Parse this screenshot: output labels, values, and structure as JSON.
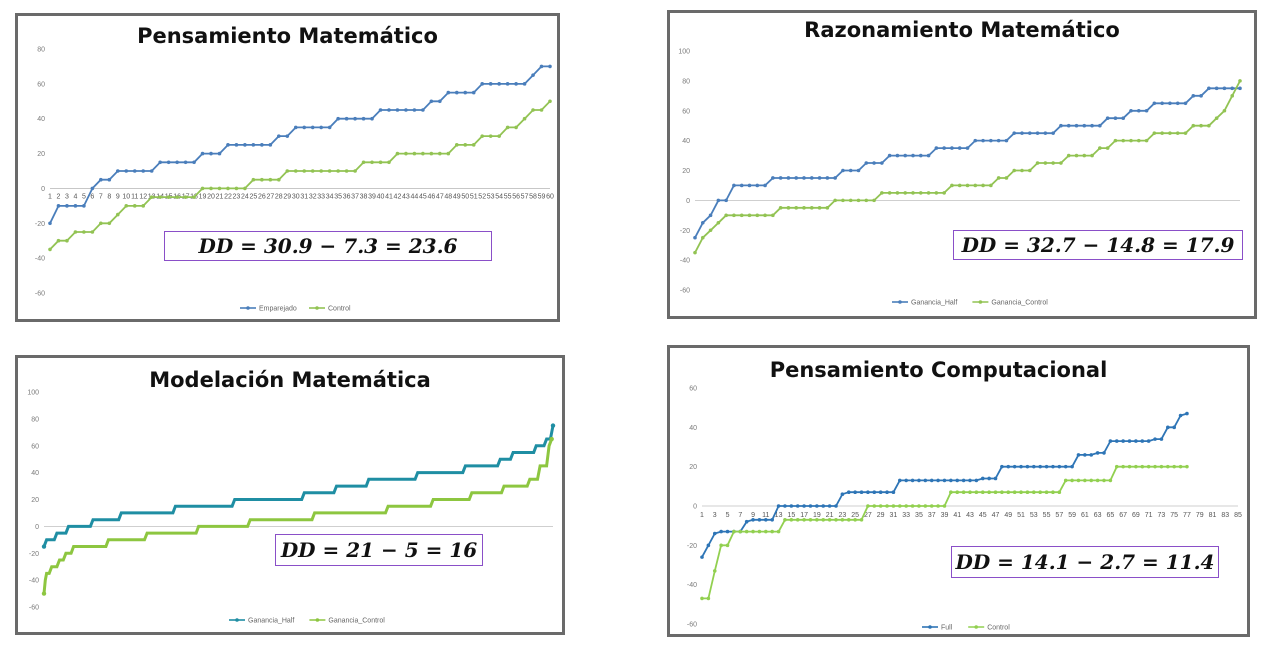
{
  "chart_data": [
    {
      "type": "line",
      "title": "Pensamiento Matemático",
      "ylim": [
        -60,
        80
      ],
      "yticks": [
        -60,
        -40,
        -20,
        0,
        20,
        40,
        60,
        80
      ],
      "grid": false,
      "legend_position": "bottom",
      "x": [
        1,
        2,
        3,
        4,
        5,
        6,
        7,
        8,
        9,
        10,
        11,
        12,
        13,
        14,
        15,
        16,
        17,
        18,
        19,
        20,
        21,
        22,
        23,
        24,
        25,
        26,
        27,
        28,
        29,
        30,
        31,
        32,
        33,
        34,
        35,
        36,
        37,
        38,
        39,
        40,
        41,
        42,
        43,
        44,
        45,
        46,
        47,
        48,
        49,
        50,
        51,
        52,
        53,
        54,
        55,
        56,
        57,
        58,
        59,
        60
      ],
      "xtick_labels": [
        "1",
        "2",
        "3",
        "4",
        "5",
        "6",
        "7",
        "8",
        "9",
        "10",
        "11",
        "12",
        "13",
        "14",
        "15",
        "16",
        "17",
        "18",
        "19",
        "20",
        "21",
        "22",
        "23",
        "24",
        "25",
        "26",
        "27",
        "28",
        "29",
        "30",
        "31",
        "32",
        "33",
        "34",
        "35",
        "36",
        "37",
        "38",
        "39",
        "40",
        "41",
        "42",
        "43",
        "44",
        "45",
        "46",
        "47",
        "48",
        "49",
        "50",
        "51",
        "52",
        "53",
        "54",
        "55",
        "56",
        "57",
        "58",
        "59",
        "60"
      ],
      "series": [
        {
          "name": "Emparejado",
          "color": "#4a7ebb",
          "values": [
            -20,
            -10,
            -10,
            -10,
            -10,
            0,
            5,
            5,
            10,
            10,
            10,
            10,
            10,
            15,
            15,
            15,
            15,
            15,
            20,
            20,
            20,
            25,
            25,
            25,
            25,
            25,
            25,
            30,
            30,
            35,
            35,
            35,
            35,
            35,
            40,
            40,
            40,
            40,
            40,
            45,
            45,
            45,
            45,
            45,
            45,
            50,
            50,
            55,
            55,
            55,
            55,
            60,
            60,
            60,
            60,
            60,
            60,
            65,
            70,
            70
          ]
        },
        {
          "name": "Control",
          "color": "#92c353",
          "values": [
            -35,
            -30,
            -30,
            -25,
            -25,
            -25,
            -20,
            -20,
            -15,
            -10,
            -10,
            -10,
            -5,
            -5,
            -5,
            -5,
            -5,
            -5,
            0,
            0,
            0,
            0,
            0,
            0,
            5,
            5,
            5,
            5,
            10,
            10,
            10,
            10,
            10,
            10,
            10,
            10,
            10,
            15,
            15,
            15,
            15,
            20,
            20,
            20,
            20,
            20,
            20,
            20,
            25,
            25,
            25,
            30,
            30,
            30,
            35,
            35,
            40,
            45,
            45,
            50
          ]
        }
      ],
      "annotation": "DD = 30.9 − 7.3 = 23.6"
    },
    {
      "type": "line",
      "title": "Razonamiento Matemático",
      "ylim": [
        -60,
        100
      ],
      "yticks": [
        -60,
        -40,
        -20,
        0,
        20,
        40,
        60,
        80,
        100
      ],
      "grid": false,
      "legend_position": "bottom",
      "x": [
        1,
        2,
        3,
        4,
        5,
        6,
        7,
        8,
        9,
        10,
        11,
        12,
        13,
        14,
        15,
        16,
        17,
        18,
        19,
        20,
        21,
        22,
        23,
        24,
        25,
        26,
        27,
        28,
        29,
        30,
        31,
        32,
        33,
        34,
        35,
        36,
        37,
        38,
        39,
        40,
        41,
        42,
        43,
        44,
        45,
        46,
        47,
        48,
        49,
        50,
        51,
        52,
        53,
        54,
        55,
        56,
        57,
        58,
        59,
        60,
        61,
        62,
        63,
        64,
        65,
        66,
        67,
        68,
        69,
        70,
        71
      ],
      "series": [
        {
          "name": "Ganancia_Half",
          "color": "#4a7ebb",
          "values": [
            -25,
            -15,
            -10,
            0,
            0,
            10,
            10,
            10,
            10,
            10,
            15,
            15,
            15,
            15,
            15,
            15,
            15,
            15,
            15,
            20,
            20,
            20,
            25,
            25,
            25,
            30,
            30,
            30,
            30,
            30,
            30,
            35,
            35,
            35,
            35,
            35,
            40,
            40,
            40,
            40,
            40,
            45,
            45,
            45,
            45,
            45,
            45,
            50,
            50,
            50,
            50,
            50,
            50,
            55,
            55,
            55,
            60,
            60,
            60,
            65,
            65,
            65,
            65,
            65,
            70,
            70,
            75,
            75,
            75,
            75,
            75
          ]
        },
        {
          "name": "Ganancia_Control",
          "color": "#92c353",
          "values": [
            -35,
            -25,
            -20,
            -15,
            -10,
            -10,
            -10,
            -10,
            -10,
            -10,
            -10,
            -5,
            -5,
            -5,
            -5,
            -5,
            -5,
            -5,
            0,
            0,
            0,
            0,
            0,
            0,
            5,
            5,
            5,
            5,
            5,
            5,
            5,
            5,
            5,
            10,
            10,
            10,
            10,
            10,
            10,
            15,
            15,
            20,
            20,
            20,
            25,
            25,
            25,
            25,
            30,
            30,
            30,
            30,
            35,
            35,
            40,
            40,
            40,
            40,
            40,
            45,
            45,
            45,
            45,
            45,
            50,
            50,
            50,
            55,
            60,
            70,
            80
          ]
        }
      ],
      "annotation": "DD = 32.7 − 14.8 = 17.9"
    },
    {
      "type": "line",
      "title": "Modelación Matemática",
      "ylim": [
        -60,
        100
      ],
      "yticks": [
        -60,
        -40,
        -20,
        0,
        20,
        40,
        60,
        80,
        100
      ],
      "grid": false,
      "legend_position": "bottom",
      "steps": [
        {
          "series": "Ganancia_Half",
          "points": [
            [
              0,
              -15
            ],
            [
              2,
              -10
            ],
            [
              8,
              -10
            ],
            [
              10,
              -5
            ],
            [
              17,
              -5
            ],
            [
              19,
              0
            ],
            [
              36,
              0
            ],
            [
              38,
              5
            ],
            [
              58,
              5
            ],
            [
              60,
              10
            ],
            [
              100,
              10
            ],
            [
              102,
              15
            ],
            [
              146,
              15
            ],
            [
              148,
              20
            ],
            [
              200,
              20
            ],
            [
              202,
              25
            ],
            [
              225,
              25
            ],
            [
              227,
              30
            ],
            [
              250,
              30
            ],
            [
              252,
              35
            ],
            [
              288,
              35
            ],
            [
              290,
              40
            ],
            [
              325,
              40
            ],
            [
              327,
              45
            ],
            [
              352,
              45
            ],
            [
              354,
              50
            ],
            [
              362,
              50
            ],
            [
              364,
              55
            ],
            [
              380,
              55
            ],
            [
              382,
              60
            ],
            [
              388,
              60
            ],
            [
              390,
              65
            ],
            [
              393,
              65
            ],
            [
              395,
              75
            ]
          ]
        },
        {
          "series": "Ganancia_Control",
          "points": [
            [
              0,
              -50
            ],
            [
              1,
              -40
            ],
            [
              2,
              -35
            ],
            [
              4,
              -35
            ],
            [
              6,
              -30
            ],
            [
              10,
              -30
            ],
            [
              12,
              -25
            ],
            [
              15,
              -25
            ],
            [
              17,
              -20
            ],
            [
              21,
              -20
            ],
            [
              23,
              -15
            ],
            [
              48,
              -15
            ],
            [
              50,
              -10
            ],
            [
              78,
              -10
            ],
            [
              80,
              -5
            ],
            [
              118,
              -5
            ],
            [
              120,
              0
            ],
            [
              158,
              0
            ],
            [
              160,
              5
            ],
            [
              208,
              5
            ],
            [
              210,
              10
            ],
            [
              265,
              10
            ],
            [
              267,
              15
            ],
            [
              300,
              15
            ],
            [
              302,
              20
            ],
            [
              330,
              20
            ],
            [
              332,
              25
            ],
            [
              355,
              25
            ],
            [
              357,
              30
            ],
            [
              375,
              30
            ],
            [
              377,
              35
            ],
            [
              383,
              35
            ],
            [
              385,
              45
            ],
            [
              390,
              45
            ],
            [
              392,
              60
            ],
            [
              394,
              65
            ]
          ]
        }
      ],
      "series": [
        {
          "name": "Ganancia_Half",
          "color": "#1f8ea3"
        },
        {
          "name": "Ganancia_Control",
          "color": "#8dc640"
        }
      ],
      "annotation": "DD = 21 − 5 = 16"
    },
    {
      "type": "line",
      "title": "Pensamiento Computacional",
      "ylim": [
        -60,
        60
      ],
      "yticks": [
        -60,
        -40,
        -20,
        0,
        20,
        40,
        60
      ],
      "grid": false,
      "legend_position": "bottom",
      "xtick_labels": [
        "1",
        "3",
        "5",
        "7",
        "9",
        "11",
        "13",
        "15",
        "17",
        "19",
        "21",
        "23",
        "25",
        "27",
        "29",
        "31",
        "33",
        "35",
        "37",
        "39",
        "41",
        "43",
        "45",
        "47",
        "49",
        "51",
        "53",
        "55",
        "57",
        "59",
        "61",
        "63",
        "65",
        "67",
        "69",
        "71",
        "73",
        "75",
        "77",
        "79",
        "81",
        "83",
        "85"
      ],
      "x": [
        1,
        2,
        3,
        4,
        5,
        6,
        7,
        8,
        9,
        10,
        11,
        12,
        13,
        14,
        15,
        16,
        17,
        18,
        19,
        20,
        21,
        22,
        23,
        24,
        25,
        26,
        27,
        28,
        29,
        30,
        31,
        32,
        33,
        34,
        35,
        36,
        37,
        38,
        39,
        40,
        41,
        42,
        43,
        44,
        45,
        46,
        47,
        48,
        49,
        50,
        51,
        52,
        53,
        54,
        55,
        56,
        57,
        58,
        59,
        60,
        61,
        62,
        63,
        64,
        65,
        66,
        67,
        68,
        69,
        70,
        71,
        72,
        73,
        74,
        75,
        76,
        77
      ],
      "series": [
        {
          "name": "Full",
          "color": "#2e75b6",
          "values": [
            -26,
            -20,
            -14,
            -13,
            -13,
            -13,
            -13,
            -8,
            -7,
            -7,
            -7,
            -7,
            0,
            0,
            0,
            0,
            0,
            0,
            0,
            0,
            0,
            0,
            6,
            7,
            7,
            7,
            7,
            7,
            7,
            7,
            7,
            13,
            13,
            13,
            13,
            13,
            13,
            13,
            13,
            13,
            13,
            13,
            13,
            13,
            14,
            14,
            14,
            20,
            20,
            20,
            20,
            20,
            20,
            20,
            20,
            20,
            20,
            20,
            20,
            26,
            26,
            26,
            27,
            27,
            33,
            33,
            33,
            33,
            33,
            33,
            33,
            34,
            34,
            40,
            40,
            46,
            47
          ]
        },
        {
          "name": "Control",
          "color": "#92d050",
          "values": [
            -47,
            -47,
            -33,
            -20,
            -20,
            -13,
            -13,
            -13,
            -13,
            -13,
            -13,
            -13,
            -13,
            -7,
            -7,
            -7,
            -7,
            -7,
            -7,
            -7,
            -7,
            -7,
            -7,
            -7,
            -7,
            -7,
            0,
            0,
            0,
            0,
            0,
            0,
            0,
            0,
            0,
            0,
            0,
            0,
            0,
            7,
            7,
            7,
            7,
            7,
            7,
            7,
            7,
            7,
            7,
            7,
            7,
            7,
            7,
            7,
            7,
            7,
            7,
            13,
            13,
            13,
            13,
            13,
            13,
            13,
            13,
            20,
            20,
            20,
            20,
            20,
            20,
            20,
            20,
            20,
            20,
            20,
            20
          ]
        }
      ],
      "annotation": "DD = 14.1 − 2.7 = 11.4"
    }
  ]
}
